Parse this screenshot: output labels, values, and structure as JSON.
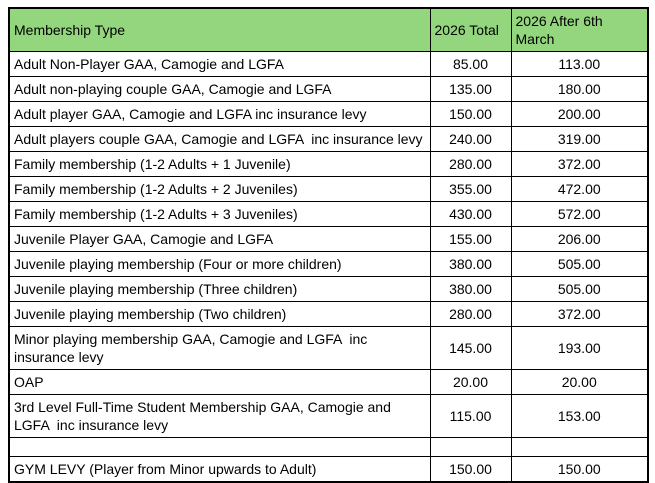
{
  "colors": {
    "header_background": "#93D67E",
    "grid_border": "#000000",
    "text": "#000000",
    "page_background": "#FFFFFF"
  },
  "table": {
    "columns": {
      "type_label": "Membership Type",
      "total_label": "2026 Total",
      "after_label": "2026 After 6th March"
    },
    "rows": [
      {
        "type": "Adult Non-Player GAA, Camogie and LGFA",
        "total": "85.00",
        "after": "113.00"
      },
      {
        "type": "Adult non-playing couple GAA, Camogie and LGFA",
        "total": "135.00",
        "after": "180.00"
      },
      {
        "type": "Adult player GAA, Camogie and LGFA inc insurance levy",
        "total": "150.00",
        "after": "200.00"
      },
      {
        "type": "Adult players couple GAA, Camogie and LGFA  inc insurance levy",
        "total": "240.00",
        "after": "319.00"
      },
      {
        "type": "Family membership (1-2 Adults + 1 Juvenile)",
        "total": "280.00",
        "after": "372.00"
      },
      {
        "type": "Family membership (1-2 Adults + 2 Juveniles)",
        "total": "355.00",
        "after": "472.00"
      },
      {
        "type": "Family membership (1-2 Adults + 3 Juveniles)",
        "total": "430.00",
        "after": "572.00"
      },
      {
        "type": "Juvenile Player GAA, Camogie and LGFA",
        "total": "155.00",
        "after": "206.00"
      },
      {
        "type": "Juvenile playing membership (Four or more children)",
        "total": "380.00",
        "after": "505.00"
      },
      {
        "type": "Juvenile playing membership (Three children)",
        "total": "380.00",
        "after": "505.00"
      },
      {
        "type": "Juvenile playing membership (Two children)",
        "total": "280.00",
        "after": "372.00"
      },
      {
        "type": "Minor playing membership GAA, Camogie and LGFA  inc insurance levy",
        "total": "145.00",
        "after": "193.00"
      },
      {
        "type": "OAP",
        "total": "20.00",
        "after": "20.00"
      },
      {
        "type": "3rd Level Full-Time Student Membership GAA, Camogie and LGFA  inc insurance levy",
        "total": "115.00",
        "after": "153.00"
      },
      {
        "type": "",
        "total": "",
        "after": ""
      },
      {
        "type": "GYM LEVY (Player from Minor upwards to Adult)",
        "total": "150.00",
        "after": "150.00"
      }
    ]
  }
}
